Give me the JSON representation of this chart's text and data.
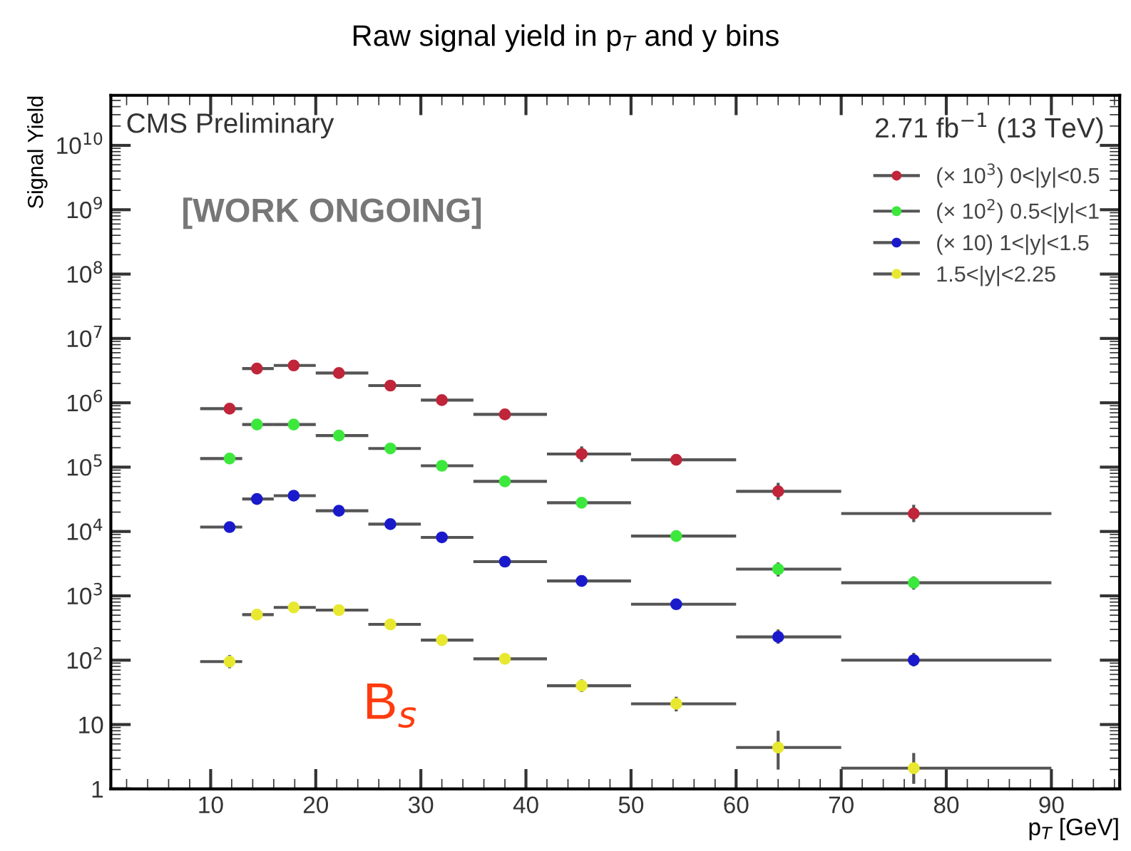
{
  "chart_data": {
    "type": "scatter",
    "title": "Raw signal yield in p$_{T}$ and y bins",
    "xlabel": "p$_{T}$ [GeV]",
    "ylabel": "Signal Yield",
    "annotations": [
      "CMS Preliminary",
      "2.71 fb$^{−1}$ (13 TeV)",
      "[WORK ONGOING]",
      "B$_{s}$"
    ],
    "x": [
      11.8,
      14.4,
      17.9,
      22.2,
      27.1,
      32.0,
      38.0,
      45.3,
      54.3,
      64.0,
      76.9
    ],
    "series": [
      {
        "name": "(× 10$^{3}$) 0<|y|<0.5",
        "color": "#c0253a",
        "values": [
          810000,
          3400000,
          3800000,
          2900000,
          1850000,
          1100000,
          660000,
          160000,
          130000,
          42000,
          19000
        ],
        "errors": [
          null,
          null,
          null,
          null,
          null,
          null,
          null,
          [
            120000,
            210000
          ],
          null,
          [
            31000,
            57000
          ],
          [
            14000,
            26000
          ]
        ],
        "xerrors": [
          [
            9,
            13
          ],
          [
            13,
            16
          ],
          [
            16,
            20
          ],
          [
            20,
            25
          ],
          [
            25,
            30
          ],
          [
            30,
            35
          ],
          [
            35,
            42
          ],
          [
            42,
            50
          ],
          [
            50,
            60
          ],
          [
            60,
            70
          ],
          [
            70,
            90
          ]
        ]
      },
      {
        "name": "(× 10$^{2}$) 0.5<|y|<1",
        "color": "#3de83d",
        "values": [
          136000,
          460000,
          460000,
          310000,
          195000,
          105000,
          60000,
          28000,
          8500,
          2600,
          1600
        ],
        "errors": [
          null,
          null,
          null,
          null,
          null,
          null,
          null,
          null,
          null,
          [
            2000,
            3300
          ],
          [
            1250,
            2000
          ]
        ],
        "xerrors": [
          [
            9,
            13
          ],
          [
            13,
            16
          ],
          [
            16,
            20
          ],
          [
            20,
            25
          ],
          [
            25,
            30
          ],
          [
            30,
            35
          ],
          [
            35,
            42
          ],
          [
            42,
            50
          ],
          [
            50,
            60
          ],
          [
            60,
            70
          ],
          [
            70,
            90
          ]
        ]
      },
      {
        "name": "(× 10) 1<|y|<1.5",
        "color": "#1a1acc",
        "values": [
          11700,
          32000,
          36000,
          21000,
          13000,
          8100,
          3400,
          1700,
          740,
          230,
          100
        ],
        "errors": [
          null,
          null,
          null,
          null,
          null,
          null,
          null,
          null,
          null,
          [
            180,
            300
          ],
          [
            80,
            130
          ]
        ],
        "xerrors": [
          [
            9,
            13
          ],
          [
            13,
            16
          ],
          [
            16,
            20
          ],
          [
            20,
            25
          ],
          [
            25,
            30
          ],
          [
            30,
            35
          ],
          [
            35,
            42
          ],
          [
            42,
            50
          ],
          [
            50,
            60
          ],
          [
            60,
            70
          ],
          [
            70,
            90
          ]
        ]
      },
      {
        "name": "1.5<|y|<2.25",
        "color": "#e8e830",
        "values": [
          95,
          510,
          660,
          600,
          360,
          205,
          105,
          40,
          21,
          4.4,
          2.1
        ],
        "errors": [
          [
            75,
            120
          ],
          null,
          null,
          null,
          null,
          null,
          null,
          [
            32,
            50
          ],
          [
            16,
            27
          ],
          [
            2,
            8
          ],
          [
            1.2,
            3.6
          ]
        ],
        "xerrors": [
          [
            9,
            13
          ],
          [
            13,
            16
          ],
          [
            16,
            20
          ],
          [
            20,
            25
          ],
          [
            25,
            30
          ],
          [
            30,
            35
          ],
          [
            35,
            42
          ],
          [
            42,
            50
          ],
          [
            50,
            60
          ],
          [
            60,
            70
          ],
          [
            70,
            90
          ]
        ]
      }
    ],
    "log": "y",
    "xlim": [
      0.5,
      96.5
    ],
    "xticks": [
      10,
      20,
      30,
      40,
      50,
      60,
      70,
      80,
      90
    ],
    "ylim": [
      1,
      60000000000
    ],
    "yticks": [
      1,
      10,
      {
        "value": 100,
        "label": "10$^{2}$"
      },
      {
        "value": 1000,
        "label": "10$^{3}$"
      },
      {
        "value": 10000,
        "label": "10$^{4}$"
      },
      {
        "value": 100000,
        "label": "10$^{5}$"
      },
      {
        "value": 1000000,
        "label": "10$^{6}$"
      },
      {
        "value": 10000000,
        "label": "10$^{7}$"
      },
      {
        "value": 100000000,
        "label": "10$^{8}$"
      },
      {
        "value": 1000000000,
        "label": "10$^{9}$"
      },
      {
        "value": 10000000000,
        "label": "10$^{10}$"
      }
    ],
    "grid": false,
    "legend": "top right",
    "marker": "circle"
  }
}
